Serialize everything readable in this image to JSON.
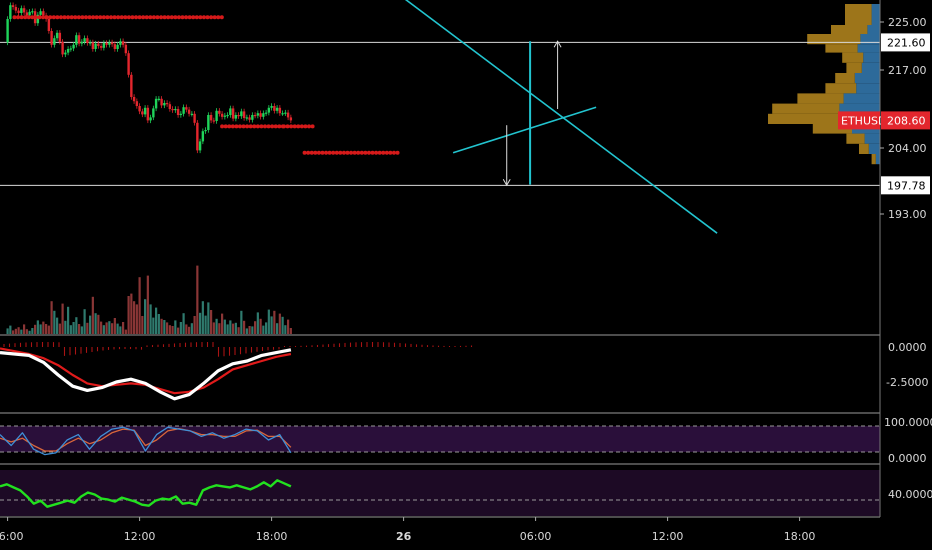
{
  "symbol": "ETHUSD",
  "colors": {
    "background": "#000000",
    "up": "#1fd45a",
    "down": "#e3262d",
    "trendline": "#22c4cf",
    "level_line": "#d9d9d9",
    "stop_dots": "#d61a1a",
    "volume_up": "#2f7a6e",
    "volume_down": "#8a3636",
    "profile_orange": "#b98a1e",
    "profile_blue": "#2d6a9a",
    "macd_fast": "#ffffff",
    "macd_signal": "#e01b1b",
    "stoch_k": "#3f8fd6",
    "stoch_d": "#d9663a",
    "stoch_band": "#2a0f3a",
    "rsi": "#22e11f",
    "rsi_band": "#1d0a25"
  },
  "chart_data": {
    "type": "candlestick",
    "price_axis": {
      "ticks": [
        "225.00",
        "217.00",
        "204.00",
        "193.00"
      ],
      "ylim": [
        190.0,
        229.0
      ]
    },
    "price_tags": [
      {
        "label": "221.60",
        "value": 221.6,
        "style": "level"
      },
      {
        "label": "208.60",
        "value": 208.6,
        "style": "current"
      },
      {
        "label": "197.78",
        "value": 197.78,
        "style": "level"
      }
    ],
    "horizontal_levels": [
      221.6,
      197.78
    ],
    "time_axis": {
      "labels": [
        "06:00",
        "12:00",
        "18:00",
        "26",
        "06:00",
        "12:00",
        "18:00"
      ],
      "label_bars": [
        0,
        48,
        96,
        144,
        192,
        240,
        288
      ]
    },
    "candles": [
      [
        221.6,
        225.5
      ],
      [
        225.5,
        227.8
      ],
      [
        227.8,
        227.5
      ],
      [
        227.5,
        226.9
      ],
      [
        226.9,
        226.5
      ],
      [
        226.5,
        227.3
      ],
      [
        227.3,
        226.6
      ],
      [
        226.6,
        226.1
      ],
      [
        226.1,
        226.7
      ],
      [
        226.7,
        226.8
      ],
      [
        226.8,
        224.8
      ],
      [
        224.8,
        226.2
      ],
      [
        226.2,
        226.8
      ],
      [
        226.8,
        226.1
      ],
      [
        226.1,
        225.5
      ],
      [
        225.5,
        223.5
      ],
      [
        223.5,
        221.2
      ],
      [
        221.2,
        222.3
      ],
      [
        222.3,
        223.2
      ],
      [
        223.2,
        221.7
      ],
      [
        221.7,
        219.6
      ],
      [
        219.6,
        219.9
      ],
      [
        219.9,
        220.5
      ],
      [
        220.5,
        220.6
      ],
      [
        220.6,
        221.2
      ],
      [
        221.2,
        222.8
      ],
      [
        222.8,
        221.4
      ],
      [
        221.4,
        221.7
      ],
      [
        221.7,
        222.3
      ],
      [
        222.3,
        221.5
      ],
      [
        221.5,
        221.6
      ],
      [
        221.6,
        220.5
      ],
      [
        220.5,
        221.4
      ],
      [
        221.4,
        221.0
      ],
      [
        221.0,
        220.7
      ],
      [
        220.7,
        221.5
      ],
      [
        221.5,
        221.2
      ],
      [
        221.2,
        221.6
      ],
      [
        221.6,
        221.3
      ],
      [
        221.3,
        220.5
      ],
      [
        220.5,
        221.2
      ],
      [
        221.2,
        221.8
      ],
      [
        221.8,
        221.2
      ],
      [
        221.2,
        219.8
      ],
      [
        219.8,
        216.2
      ],
      [
        216.2,
        212.5
      ],
      [
        212.5,
        211.8
      ],
      [
        211.8,
        211.0
      ],
      [
        211.0,
        210.1
      ],
      [
        210.1,
        209.6
      ],
      [
        209.6,
        210.7
      ],
      [
        210.7,
        208.6
      ],
      [
        208.6,
        209.1
      ],
      [
        209.1,
        210.6
      ],
      [
        210.6,
        212.2
      ],
      [
        212.2,
        212.2
      ],
      [
        212.2,
        211.1
      ],
      [
        211.1,
        211.5
      ],
      [
        211.5,
        211.3
      ],
      [
        211.3,
        210.5
      ],
      [
        210.5,
        210.3
      ],
      [
        210.3,
        210.5
      ],
      [
        210.5,
        209.5
      ],
      [
        209.5,
        209.7
      ],
      [
        209.7,
        210.8
      ],
      [
        210.8,
        210.4
      ],
      [
        210.4,
        209.7
      ],
      [
        209.7,
        209.7
      ],
      [
        209.7,
        208.2
      ],
      [
        208.2,
        203.6
      ],
      [
        203.6,
        205.1
      ],
      [
        205.1,
        206.8
      ],
      [
        206.8,
        207.0
      ],
      [
        207.0,
        209.5
      ],
      [
        209.5,
        208.6
      ],
      [
        208.6,
        208.5
      ],
      [
        208.5,
        210.2
      ],
      [
        210.2,
        209.7
      ],
      [
        209.7,
        209.2
      ],
      [
        209.2,
        209.4
      ],
      [
        209.4,
        209.5
      ],
      [
        209.5,
        210.6
      ],
      [
        210.6,
        208.9
      ],
      [
        208.9,
        209.5
      ],
      [
        209.5,
        209.3
      ],
      [
        209.3,
        210.1
      ],
      [
        210.1,
        209.0
      ],
      [
        209.0,
        209.1
      ],
      [
        209.1,
        208.7
      ],
      [
        208.7,
        209.5
      ],
      [
        209.5,
        209.4
      ],
      [
        209.4,
        209.8
      ],
      [
        209.8,
        209.2
      ],
      [
        209.2,
        209.8
      ],
      [
        209.8,
        209.9
      ],
      [
        209.9,
        210.7
      ],
      [
        210.7,
        211.0
      ],
      [
        211.0,
        210.2
      ],
      [
        210.2,
        210.7
      ],
      [
        210.7,
        209.8
      ],
      [
        209.8,
        209.8
      ],
      [
        209.8,
        209.9
      ],
      [
        209.9,
        209.1
      ],
      [
        209.1,
        208.6
      ]
    ],
    "volume": [
      1.4,
      2.1,
      0.9,
      1.3,
      1.7,
      1.1,
      2.4,
      1.2,
      0.8,
      1.5,
      2.3,
      3.4,
      2.4,
      3.1,
      2.5,
      2.1,
      8.2,
      5.8,
      4.1,
      2.6,
      7.6,
      3.3,
      6.8,
      2.2,
      3.0,
      4.2,
      2.5,
      1.9,
      6.2,
      2.8,
      4.6,
      9.3,
      5.2,
      4.8,
      3.1,
      2.2,
      2.9,
      3.2,
      2.7,
      4.0,
      2.6,
      1.9,
      3.0,
      1.1,
      9.5,
      10.1,
      8.2,
      7.4,
      14.2,
      4.5,
      8.7,
      14.6,
      7.4,
      4.1,
      6.6,
      5.0,
      3.8,
      3.5,
      2.9,
      2.2,
      2.0,
      3.4,
      1.6,
      3.0,
      5.2,
      2.4,
      1.8,
      2.7,
      4.5,
      17.1,
      5.3,
      8.2,
      4.6,
      7.9,
      6.0,
      2.9,
      3.8,
      2.7,
      5.1,
      3.6,
      2.4,
      3.4,
      2.6,
      2.8,
      1.7,
      5.8,
      3.3,
      1.4,
      2.0,
      1.9,
      3.2,
      5.4,
      3.8,
      2.1,
      2.9,
      6.1,
      4.4,
      5.8,
      2.7,
      5.1,
      4.3,
      2.2,
      3.6,
      1.5
    ],
    "volume_profile": [
      [
        224.5,
        228.0,
        1.9,
        0.6
      ],
      [
        223.0,
        224.5,
        2.6,
        0.9
      ],
      [
        221.3,
        223.0,
        3.8,
        1.4
      ],
      [
        219.9,
        221.3,
        2.3,
        1.6
      ],
      [
        218.2,
        219.9,
        1.5,
        1.2
      ],
      [
        216.5,
        218.2,
        1.1,
        1.3
      ],
      [
        214.8,
        216.5,
        1.4,
        1.8
      ],
      [
        213.1,
        214.8,
        2.2,
        1.7
      ],
      [
        211.4,
        213.1,
        3.3,
        2.6
      ],
      [
        209.7,
        211.4,
        4.8,
        2.9
      ],
      [
        208.0,
        209.7,
        5.6,
        2.4
      ],
      [
        206.4,
        208.0,
        2.8,
        2.0
      ],
      [
        204.7,
        206.4,
        1.3,
        1.1
      ],
      [
        203.0,
        204.7,
        0.7,
        0.8
      ],
      [
        201.3,
        203.0,
        0.3,
        0.3
      ]
    ],
    "annotations": {
      "descending_trendline": [
        [
          144.0,
          229.0
        ],
        [
          258.0,
          189.8
        ]
      ],
      "rising_trendline": [
        [
          162.0,
          203.2
        ],
        [
          214.0,
          210.8
        ]
      ],
      "vertical_marker_bar": 190.0,
      "vertical_marker_range": [
        197.9,
        221.8
      ],
      "up_arrow": {
        "bar": 200.0,
        "from": 210.5,
        "to": 221.8
      },
      "down_arrow": {
        "bar": 181.5,
        "from": 207.8,
        "to": 197.8
      },
      "stop_levels": [
        {
          "from_bar": 2.5,
          "to_bar": 78.0,
          "value": 225.8
        },
        {
          "from_bar": 78.0,
          "to_bar": 100.5,
          "value": 207.6
        },
        {
          "from_bar": 100.5,
          "to_bar": 111.0,
          "value": 207.6
        },
        {
          "from_bar": 108.0,
          "to_bar": 142.0,
          "value": 203.2
        }
      ]
    },
    "macd": {
      "ticks": [
        "0.0000",
        "-2.5000"
      ],
      "ylim": [
        -4.5,
        0.5
      ],
      "fast": [
        -0.4,
        -0.5,
        -0.6,
        -1.1,
        -2.0,
        -2.8,
        -3.1,
        -2.9,
        -2.5,
        -2.3,
        -2.6,
        -3.2,
        -3.7,
        -3.4,
        -2.6,
        -1.7,
        -1.2,
        -1.0,
        -0.6,
        -0.4,
        -0.2
      ],
      "signal": [
        -0.1,
        -0.3,
        -0.5,
        -0.8,
        -1.3,
        -2.0,
        -2.6,
        -2.8,
        -2.7,
        -2.6,
        -2.7,
        -3.0,
        -3.3,
        -3.2,
        -2.9,
        -2.3,
        -1.6,
        -1.3,
        -1.0,
        -0.7,
        -0.5
      ]
    },
    "stochastic": {
      "ticks": [
        "100.0000",
        "0.0000"
      ],
      "ylim": [
        -8,
        110
      ],
      "k": [
        70,
        40,
        75,
        30,
        15,
        20,
        55,
        70,
        30,
        65,
        85,
        90,
        80,
        25,
        70,
        90,
        85,
        80,
        65,
        75,
        60,
        70,
        85,
        80,
        55,
        70,
        20
      ],
      "d": [
        60,
        50,
        60,
        40,
        25,
        25,
        45,
        60,
        45,
        55,
        75,
        85,
        82,
        40,
        55,
        80,
        86,
        80,
        70,
        70,
        65,
        65,
        80,
        82,
        65,
        65,
        35
      ]
    },
    "rsi": {
      "ticks": [
        "40.0000"
      ],
      "ylim": [
        25,
        80
      ],
      "values": [
        60,
        62,
        59,
        56,
        50,
        43,
        46,
        40,
        42,
        44,
        46,
        44,
        50,
        54,
        52,
        48,
        47,
        45,
        49,
        47,
        45,
        42,
        41,
        46,
        48,
        47,
        50,
        43,
        44,
        42,
        56,
        59,
        61,
        60,
        59,
        61,
        59,
        57,
        60,
        64,
        60,
        66,
        63,
        60
      ]
    }
  }
}
